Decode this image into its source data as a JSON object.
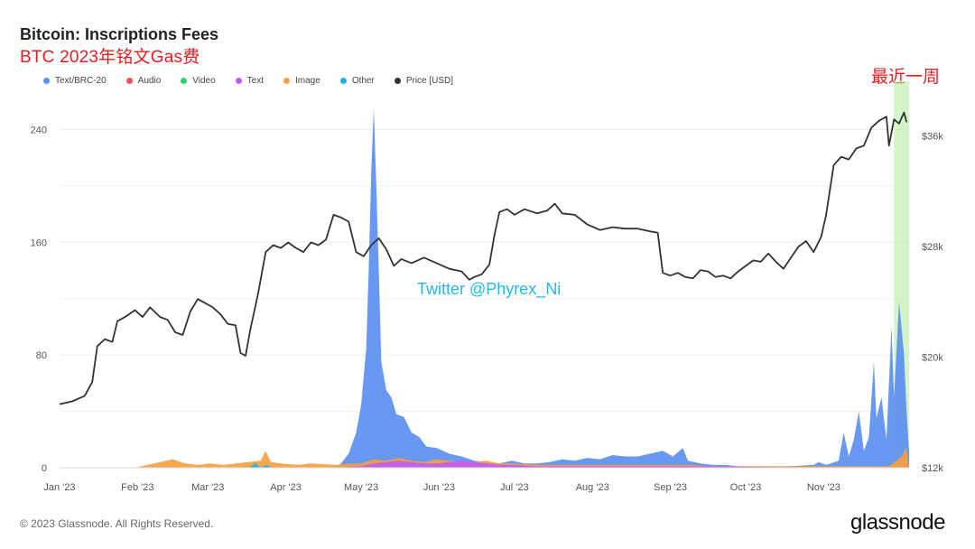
{
  "header": {
    "title": "Bitcoin: Inscriptions Fees",
    "subtitle": "BTC 2023年铭文Gas费"
  },
  "annotation": "最近一周",
  "watermark": "Twitter @Phyrex_Ni",
  "footer": "© 2023 Glassnode. All Rights Reserved.",
  "brand": "glassnode",
  "legend": [
    {
      "label": "Text/BRC-20",
      "color": "#5b8ff0"
    },
    {
      "label": "Audio",
      "color": "#f0505a"
    },
    {
      "label": "Video",
      "color": "#2fcf6a"
    },
    {
      "label": "Text",
      "color": "#c05cf0"
    },
    {
      "label": "Image",
      "color": "#f5a040"
    },
    {
      "label": "Other",
      "color": "#22b0e8"
    },
    {
      "label": "Price [USD]",
      "color": "#333333"
    }
  ],
  "chart_data": {
    "type": "area",
    "x_axis_labels": [
      "Jan '23",
      "Feb '23",
      "Mar '23",
      "Apr '23",
      "May '23",
      "Jun '23",
      "Jul '23",
      "Aug '23",
      "Sep '23",
      "Oct '23",
      "Nov '23"
    ],
    "y_left": {
      "ticks": [
        "0",
        "80",
        "160",
        "240"
      ],
      "range": [
        0,
        255
      ]
    },
    "y_right": {
      "ticks": [
        "$12k",
        "$20k",
        "$28k",
        "$36k"
      ],
      "range": [
        12000,
        38000
      ],
      "tick_values": [
        12000,
        20000,
        28000,
        36000
      ]
    },
    "highlight": {
      "label": "最近一周",
      "from_day": 332,
      "to_day": 338,
      "color": "#b8f0a0"
    },
    "series": [
      {
        "name": "Text/BRC-20",
        "color": "#5b8ff0",
        "points": [
          [
            0,
            0
          ],
          [
            95,
            0
          ],
          [
            110,
            1
          ],
          [
            112,
            3
          ],
          [
            115,
            10
          ],
          [
            118,
            25
          ],
          [
            120,
            45
          ],
          [
            122,
            85
          ],
          [
            123,
            140
          ],
          [
            124,
            210
          ],
          [
            125,
            255
          ],
          [
            126,
            200
          ],
          [
            127,
            140
          ],
          [
            128,
            75
          ],
          [
            130,
            55
          ],
          [
            132,
            50
          ],
          [
            134,
            38
          ],
          [
            137,
            36
          ],
          [
            140,
            25
          ],
          [
            143,
            22
          ],
          [
            146,
            15
          ],
          [
            150,
            14
          ],
          [
            155,
            10
          ],
          [
            160,
            8
          ],
          [
            165,
            5
          ],
          [
            170,
            4
          ],
          [
            175,
            3
          ],
          [
            180,
            5
          ],
          [
            185,
            3
          ],
          [
            190,
            3
          ],
          [
            195,
            4
          ],
          [
            200,
            6
          ],
          [
            205,
            5
          ],
          [
            210,
            7
          ],
          [
            215,
            6
          ],
          [
            220,
            9
          ],
          [
            225,
            8
          ],
          [
            230,
            8
          ],
          [
            235,
            10
          ],
          [
            240,
            12
          ],
          [
            244,
            8
          ],
          [
            248,
            14
          ],
          [
            250,
            5
          ],
          [
            255,
            3
          ],
          [
            260,
            2
          ],
          [
            265,
            2
          ],
          [
            270,
            1
          ],
          [
            280,
            1
          ],
          [
            290,
            1
          ],
          [
            300,
            2
          ],
          [
            302,
            4
          ],
          [
            305,
            2
          ],
          [
            310,
            5
          ],
          [
            312,
            25
          ],
          [
            314,
            8
          ],
          [
            316,
            20
          ],
          [
            318,
            40
          ],
          [
            320,
            12
          ],
          [
            322,
            22
          ],
          [
            324,
            75
          ],
          [
            325,
            35
          ],
          [
            327,
            50
          ],
          [
            329,
            20
          ],
          [
            331,
            100
          ],
          [
            332,
            50
          ],
          [
            334,
            118
          ],
          [
            336,
            80
          ],
          [
            337,
            40
          ],
          [
            338,
            10
          ],
          [
            338,
            0
          ]
        ]
      },
      {
        "name": "Image",
        "color": "#f5a040",
        "points": [
          [
            0,
            0
          ],
          [
            30,
            0
          ],
          [
            35,
            2
          ],
          [
            40,
            4
          ],
          [
            45,
            6
          ],
          [
            50,
            3
          ],
          [
            55,
            2
          ],
          [
            60,
            3
          ],
          [
            65,
            2
          ],
          [
            70,
            3
          ],
          [
            75,
            4
          ],
          [
            80,
            5
          ],
          [
            82,
            12
          ],
          [
            84,
            4
          ],
          [
            88,
            3
          ],
          [
            95,
            2
          ],
          [
            100,
            3
          ],
          [
            110,
            2
          ],
          [
            115,
            3
          ],
          [
            120,
            3
          ],
          [
            125,
            6
          ],
          [
            130,
            5
          ],
          [
            135,
            7
          ],
          [
            140,
            5
          ],
          [
            145,
            4
          ],
          [
            150,
            6
          ],
          [
            155,
            5
          ],
          [
            160,
            4
          ],
          [
            165,
            4
          ],
          [
            170,
            5
          ],
          [
            175,
            3
          ],
          [
            180,
            3
          ],
          [
            190,
            2
          ],
          [
            200,
            2
          ],
          [
            210,
            2
          ],
          [
            220,
            2
          ],
          [
            230,
            2
          ],
          [
            240,
            2
          ],
          [
            250,
            2
          ],
          [
            260,
            1
          ],
          [
            270,
            1
          ],
          [
            280,
            1
          ],
          [
            300,
            1
          ],
          [
            320,
            1
          ],
          [
            330,
            1
          ],
          [
            335,
            8
          ],
          [
            337,
            14
          ],
          [
            338,
            0
          ]
        ]
      },
      {
        "name": "Text",
        "color": "#c05cf0",
        "points": [
          [
            0,
            0
          ],
          [
            110,
            0
          ],
          [
            120,
            1
          ],
          [
            125,
            3
          ],
          [
            130,
            4
          ],
          [
            135,
            5
          ],
          [
            140,
            4
          ],
          [
            145,
            3
          ],
          [
            150,
            3
          ],
          [
            155,
            4
          ],
          [
            160,
            5
          ],
          [
            165,
            4
          ],
          [
            170,
            3
          ],
          [
            175,
            2
          ],
          [
            180,
            2
          ],
          [
            190,
            1
          ],
          [
            200,
            1
          ],
          [
            220,
            1
          ],
          [
            240,
            1
          ],
          [
            260,
            1
          ],
          [
            300,
            0
          ],
          [
            338,
            0
          ]
        ]
      },
      {
        "name": "Other",
        "color": "#22b0e8",
        "points": [
          [
            0,
            0
          ],
          [
            75,
            0
          ],
          [
            78,
            3
          ],
          [
            80,
            0
          ],
          [
            82,
            2
          ],
          [
            85,
            0
          ],
          [
            338,
            0
          ]
        ]
      }
    ],
    "price": {
      "name": "Price [USD]",
      "color": "#333333",
      "points": [
        [
          0,
          16600
        ],
        [
          5,
          16800
        ],
        [
          10,
          17200
        ],
        [
          13,
          18200
        ],
        [
          15,
          20800
        ],
        [
          18,
          21300
        ],
        [
          21,
          21100
        ],
        [
          23,
          22600
        ],
        [
          26,
          22900
        ],
        [
          30,
          23400
        ],
        [
          33,
          22900
        ],
        [
          36,
          23600
        ],
        [
          40,
          22900
        ],
        [
          43,
          22700
        ],
        [
          46,
          21800
        ],
        [
          49,
          21600
        ],
        [
          52,
          23300
        ],
        [
          55,
          24200
        ],
        [
          58,
          23900
        ],
        [
          61,
          23600
        ],
        [
          64,
          23100
        ],
        [
          67,
          22400
        ],
        [
          70,
          22300
        ],
        [
          72,
          20300
        ],
        [
          74,
          20100
        ],
        [
          76,
          22100
        ],
        [
          79,
          24600
        ],
        [
          82,
          27600
        ],
        [
          85,
          28100
        ],
        [
          88,
          27900
        ],
        [
          91,
          28300
        ],
        [
          94,
          27900
        ],
        [
          97,
          27600
        ],
        [
          100,
          28300
        ],
        [
          103,
          28100
        ],
        [
          106,
          28500
        ],
        [
          109,
          30300
        ],
        [
          112,
          30100
        ],
        [
          115,
          29800
        ],
        [
          118,
          27600
        ],
        [
          121,
          27300
        ],
        [
          124,
          28100
        ],
        [
          127,
          28600
        ],
        [
          130,
          27800
        ],
        [
          133,
          26600
        ],
        [
          136,
          27100
        ],
        [
          140,
          26800
        ],
        [
          145,
          27200
        ],
        [
          150,
          26800
        ],
        [
          155,
          26400
        ],
        [
          160,
          26200
        ],
        [
          163,
          25600
        ],
        [
          165,
          25800
        ],
        [
          168,
          26000
        ],
        [
          171,
          26700
        ],
        [
          173,
          28800
        ],
        [
          175,
          30500
        ],
        [
          178,
          30700
        ],
        [
          181,
          30300
        ],
        [
          185,
          30700
        ],
        [
          190,
          30400
        ],
        [
          194,
          30600
        ],
        [
          197,
          31100
        ],
        [
          200,
          30400
        ],
        [
          205,
          30300
        ],
        [
          210,
          29600
        ],
        [
          215,
          29200
        ],
        [
          220,
          29400
        ],
        [
          225,
          29300
        ],
        [
          230,
          29300
        ],
        [
          235,
          29100
        ],
        [
          238,
          29000
        ],
        [
          240,
          26100
        ],
        [
          243,
          25900
        ],
        [
          246,
          26100
        ],
        [
          249,
          25800
        ],
        [
          252,
          25700
        ],
        [
          255,
          26300
        ],
        [
          258,
          26200
        ],
        [
          261,
          25800
        ],
        [
          264,
          25900
        ],
        [
          267,
          25700
        ],
        [
          270,
          26200
        ],
        [
          273,
          26600
        ],
        [
          276,
          27000
        ],
        [
          279,
          26900
        ],
        [
          282,
          27500
        ],
        [
          285,
          26900
        ],
        [
          288,
          26400
        ],
        [
          291,
          27200
        ],
        [
          294,
          28000
        ],
        [
          297,
          28400
        ],
        [
          300,
          27600
        ],
        [
          303,
          28700
        ],
        [
          305,
          30300
        ],
        [
          308,
          33900
        ],
        [
          311,
          34500
        ],
        [
          314,
          34300
        ],
        [
          317,
          35100
        ],
        [
          320,
          35300
        ],
        [
          323,
          36600
        ],
        [
          326,
          37100
        ],
        [
          329,
          37400
        ],
        [
          330,
          35300
        ],
        [
          332,
          37200
        ],
        [
          334,
          36900
        ],
        [
          336,
          37700
        ],
        [
          337,
          37000
        ]
      ]
    }
  }
}
